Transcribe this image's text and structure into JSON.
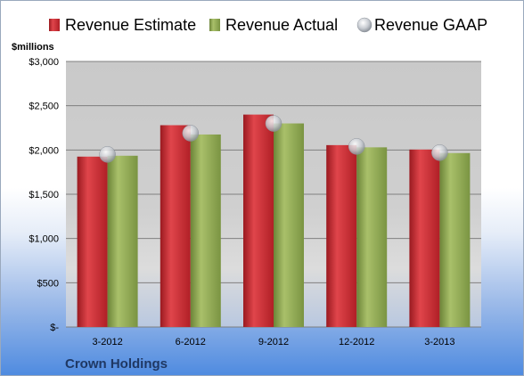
{
  "chart_data": {
    "type": "bar",
    "ylabel": "$millions",
    "footer": "Crown Holdings",
    "categories": [
      "3-2012",
      "6-2012",
      "9-2012",
      "12-2012",
      "3-2013"
    ],
    "ylim": [
      0,
      3000
    ],
    "yticks": [
      0,
      500,
      1000,
      1500,
      2000,
      2500,
      3000
    ],
    "ytick_labels": [
      "$-",
      "$500",
      "$1,000",
      "$1,500",
      "$2,000",
      "$2,500",
      "$3,000"
    ],
    "grid": true,
    "legend_position": "top",
    "series": [
      {
        "name": "Revenue Estimate",
        "kind": "bar",
        "color": "#c0262d",
        "values": [
          1925,
          2280,
          2400,
          2055,
          2005
        ]
      },
      {
        "name": "Revenue Actual",
        "kind": "bar",
        "color": "#8aa34e",
        "values": [
          1935,
          2175,
          2300,
          2030,
          1965
        ]
      },
      {
        "name": "Revenue GAAP",
        "kind": "marker",
        "color": "#c8ccd2",
        "values": [
          1950,
          2190,
          2300,
          2040,
          1970
        ]
      }
    ]
  }
}
